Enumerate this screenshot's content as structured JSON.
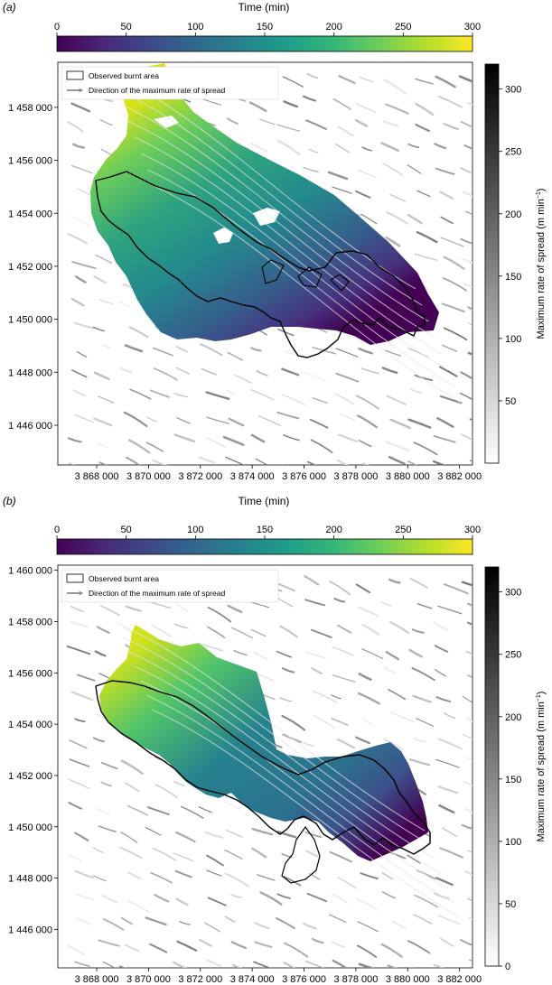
{
  "colors": {
    "viridis": [
      "#440154",
      "#482878",
      "#3e4989",
      "#31688e",
      "#26828e",
      "#1f9e89",
      "#35b779",
      "#6ece58",
      "#b5de2b",
      "#fde725"
    ],
    "burnt_outline": "#000000",
    "streamline": "#ffffff"
  },
  "panels": [
    {
      "label": "(a)",
      "colorbar_top": {
        "title": "Time (min)",
        "ticks": [
          "0",
          "50",
          "100",
          "150",
          "200",
          "250",
          "300"
        ],
        "range": [
          0,
          300
        ]
      },
      "colorbar_side": {
        "title": "Maximum rate of spread (m min",
        "title_sup": "−1",
        "title_end": ")",
        "ticks": [
          "50",
          "100",
          "150",
          "200",
          "250",
          "300"
        ],
        "range": [
          0,
          320
        ]
      },
      "legend": {
        "burnt": "Observed burnt area",
        "direction": "Direction of the maximum rate of spread"
      },
      "x_ticks": [
        "3 868 000",
        "3 870 000",
        "3 872 000",
        "3 874 000",
        "3 876 000",
        "3 878 000",
        "3 880 000",
        "3 882 000"
      ],
      "y_ticks": [
        "1 458 000",
        "1 456 000",
        "1 454 000",
        "1 452 000",
        "1 450 000",
        "1 448 000",
        "1 446 000"
      ],
      "x_range": [
        3866500,
        3882500
      ],
      "y_range": [
        1444500,
        1459700
      ]
    },
    {
      "label": "(b)",
      "colorbar_top": {
        "title": "Time (min)",
        "ticks": [
          "0",
          "50",
          "100",
          "150",
          "200",
          "250",
          "300"
        ],
        "range": [
          0,
          300
        ]
      },
      "colorbar_side": {
        "title": "Maximum rate of spread (m min",
        "title_sup": "−1",
        "title_end": ")",
        "ticks": [
          "0",
          "50",
          "100",
          "150",
          "200",
          "250",
          "300"
        ],
        "range": [
          0,
          320
        ]
      },
      "legend": {
        "burnt": "Observed burnt area",
        "direction": "Direction of the maximum rate of spread"
      },
      "x_ticks": [
        "3 868 000",
        "3 870 000",
        "3 872 000",
        "3 874 000",
        "3 876 000",
        "3 878 000",
        "3 880 000",
        "3 882 000"
      ],
      "y_ticks": [
        "1 460 000",
        "1 458 000",
        "1 456 000",
        "1 454 000",
        "1 452 000",
        "1 450 000",
        "1 448 000",
        "1 446 000"
      ],
      "x_range": [
        3866500,
        3882500
      ],
      "y_range": [
        1444500,
        1460200
      ]
    }
  ]
}
